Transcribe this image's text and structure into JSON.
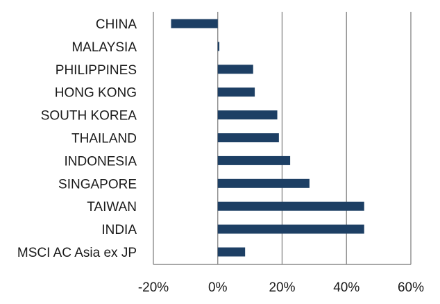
{
  "chart_data": {
    "type": "bar",
    "orientation": "horizontal",
    "categories": [
      "CHINA",
      "MALAYSIA",
      "PHILIPPINES",
      "HONG KONG",
      "SOUTH KOREA",
      "THAILAND",
      "INDONESIA",
      "SINGAPORE",
      "TAIWAN",
      "INDIA",
      "MSCI AC Asia ex JP"
    ],
    "values": [
      -14.5,
      0.5,
      11,
      11.5,
      18.5,
      19,
      22.5,
      28.5,
      45.5,
      45.5,
      8.5
    ],
    "xlim": [
      -20,
      60
    ],
    "xticks": [
      -20,
      0,
      20,
      40,
      60
    ],
    "xtick_labels": [
      "-20%",
      "0%",
      "20%",
      "40%",
      "60%"
    ],
    "grid": "vertical",
    "bar_color": "#1d3f64",
    "grid_color": "#8c8c8c",
    "title": "",
    "xlabel": "",
    "ylabel": ""
  }
}
